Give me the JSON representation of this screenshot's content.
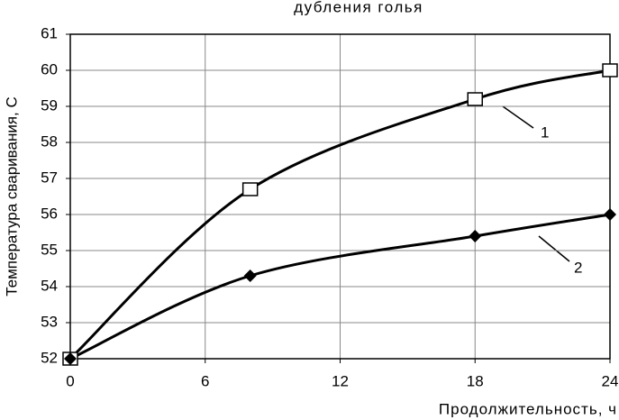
{
  "chart_data": {
    "type": "line",
    "title": "дубления голья",
    "x_label": "Продолжительность, ч",
    "y_label": "Температура сваривания,  С",
    "x": [
      0,
      8,
      18,
      24
    ],
    "series": [
      {
        "name": "1",
        "color": "#000000",
        "marker": "square",
        "values": [
          52,
          56.7,
          59.2,
          60
        ]
      },
      {
        "name": "2",
        "color": "#000000",
        "marker": "diamond",
        "values": [
          52,
          54.3,
          55.4,
          56
        ]
      }
    ],
    "xlim": [
      0,
      24
    ],
    "ylim": [
      52,
      61
    ],
    "xticks": [
      0,
      6,
      12,
      18,
      24
    ],
    "yticks": [
      52,
      53,
      54,
      55,
      56,
      57,
      58,
      59,
      60,
      61
    ],
    "grid": true
  }
}
